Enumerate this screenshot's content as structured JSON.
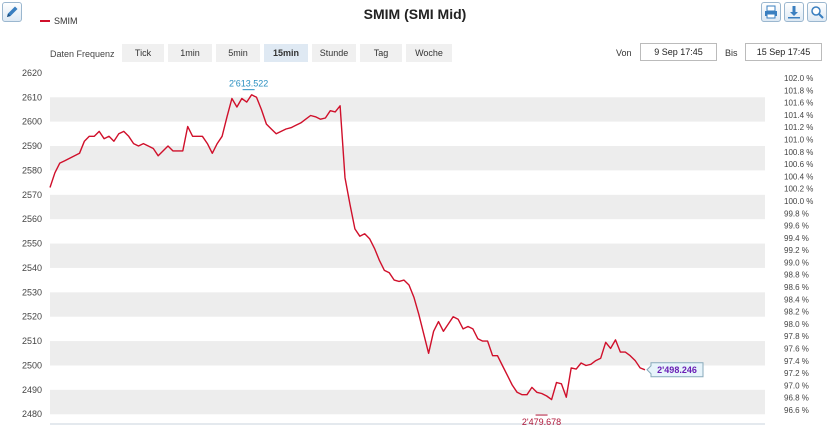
{
  "toolbar": {
    "edit_icon": "pencil-icon",
    "print_icon": "print-icon",
    "download_icon": "download-icon",
    "zoom_icon": "zoom-icon"
  },
  "frequency": {
    "label": "Daten Frequenz",
    "options": [
      "Tick",
      "1min",
      "5min",
      "15min",
      "Stunde",
      "Tag",
      "Woche"
    ],
    "selected": "15min"
  },
  "range": {
    "from_label": "Von",
    "from_value": "9 Sep 17:45",
    "to_label": "Bis",
    "to_value": "15 Sep 17:45"
  },
  "colors": {
    "line": "#d0102b",
    "band": "#ededed",
    "accent": "#2a8fc0"
  },
  "chart_data": {
    "type": "line",
    "title": "SMIM (SMI Mid)",
    "series": [
      {
        "name": "SMIM",
        "values": [
          2573,
          2579,
          2583,
          2584,
          2585,
          2586,
          2587,
          2592,
          2594,
          2594,
          2596,
          2593,
          2594,
          2592,
          2595,
          2596,
          2594,
          2591,
          2590,
          2591,
          2590,
          2589,
          2586,
          2588,
          2590,
          2588,
          2588,
          2588,
          2598,
          2594,
          2594,
          2594,
          2591,
          2587,
          2591,
          2594,
          2602,
          2609.5,
          2606,
          2609.5,
          2608,
          2611,
          2610,
          2605,
          2599,
          2597,
          2595,
          2596,
          2597,
          2597.5,
          2598.5,
          2599.5,
          2601,
          2602.5,
          2602,
          2601,
          2601.5,
          2604.5,
          2604,
          2606.5,
          2577,
          2566,
          2556,
          2553,
          2554,
          2552,
          2548,
          2543,
          2539,
          2538,
          2535,
          2534.5,
          2535,
          2533,
          2528,
          2521,
          2513,
          2505,
          2514,
          2518,
          2514,
          2517,
          2520,
          2519,
          2515,
          2516,
          2515,
          2511,
          2510,
          2510,
          2504,
          2504,
          2500,
          2496,
          2492,
          2489,
          2488,
          2488,
          2491,
          2489,
          2488.5,
          2487.5,
          2486,
          2493,
          2492.5,
          2487,
          2499,
          2498.5,
          2501,
          2500,
          2500.5,
          2502,
          2503,
          2509.5,
          2507,
          2510.5,
          2505.5,
          2505.5,
          2504,
          2502,
          2499,
          2498.246
        ]
      }
    ],
    "y_left": {
      "ticks": [
        2480,
        2490,
        2500,
        2510,
        2520,
        2530,
        2540,
        2550,
        2560,
        2570,
        2580,
        2590,
        2600,
        2610,
        2620
      ],
      "range": [
        2476,
        2622
      ]
    },
    "y_right": {
      "ticks": [
        "102.0 %",
        "101.8 %",
        "101.6 %",
        "101.4 %",
        "101.2 %",
        "101.0 %",
        "100.8 %",
        "100.6 %",
        "100.4 %",
        "100.2 %",
        "100.0 %",
        "99.8 %",
        "99.6 %",
        "99.4 %",
        "99.2 %",
        "99.0 %",
        "98.8 %",
        "98.6 %",
        "98.4 %",
        "98.2 %",
        "98.0 %",
        "97.8 %",
        "97.6 %",
        "97.4 %",
        "97.2 %",
        "97.0 %",
        "96.8 %",
        "96.6 %"
      ],
      "range_percent": [
        96.6,
        102.0
      ]
    },
    "annotations": {
      "max": "2'613.522",
      "min": "2'479.678",
      "last": "2'498.246"
    },
    "grid": "alternating bands",
    "legend_position": "top-left"
  }
}
